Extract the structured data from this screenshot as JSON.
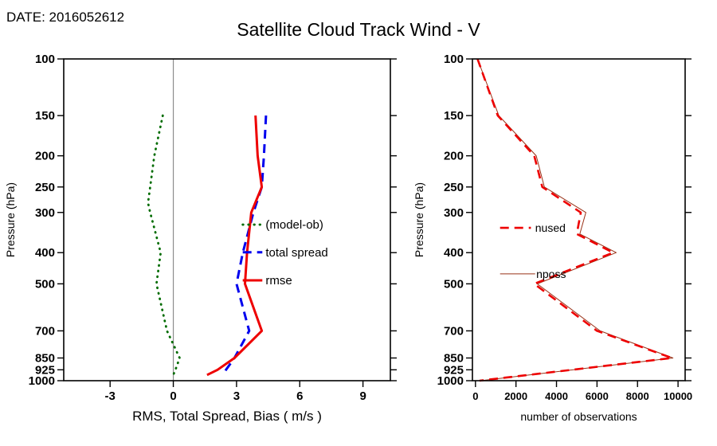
{
  "header": {
    "date": "DATE: 2016052612",
    "title": "Satellite Cloud Track Wind - V"
  },
  "chart_data": [
    {
      "type": "line",
      "panel": "left",
      "xlabel": "RMS, Total Spread, Bias ( m/s )",
      "ylabel": "Pressure (hPa)",
      "xlim": [
        -5.2,
        10.3
      ],
      "xticks": [
        -3,
        0,
        3,
        6,
        9
      ],
      "yscale": "log",
      "ylim": [
        100,
        1000
      ],
      "yticks": [
        100,
        150,
        200,
        250,
        300,
        400,
        500,
        700,
        850,
        925,
        1000
      ],
      "zero_line": true,
      "zero_line_color": "#8c8c8c",
      "frame_color": "#000000",
      "series": [
        {
          "name": "(model-ob)",
          "color": "#006b00",
          "style": "dotted",
          "width": 2.8,
          "pressure": [
            150,
            200,
            250,
            280,
            300,
            400,
            500,
            700,
            850,
            925,
            960
          ],
          "values": [
            -0.5,
            -0.9,
            -1.1,
            -1.2,
            -1.1,
            -0.6,
            -0.8,
            -0.3,
            0.3,
            0.1,
            0.0
          ]
        },
        {
          "name": "total spread",
          "color": "#0000ee",
          "style": "dashed",
          "width": 3,
          "pressure": [
            150,
            200,
            250,
            300,
            400,
            500,
            700,
            850,
            925,
            960
          ],
          "values": [
            4.4,
            4.3,
            4.2,
            3.8,
            3.3,
            3.0,
            3.6,
            2.9,
            2.5,
            2.4
          ]
        },
        {
          "name": "rmse",
          "color": "#ee0000",
          "style": "solid",
          "width": 3,
          "pressure": [
            150,
            200,
            250,
            300,
            400,
            500,
            700,
            850,
            925,
            960
          ],
          "values": [
            3.9,
            4.0,
            4.2,
            3.7,
            3.5,
            3.4,
            4.2,
            2.9,
            2.1,
            1.6
          ]
        }
      ],
      "legend": {
        "items": [
          {
            "label": "(model-ob)",
            "series": 0,
            "sample": [
              0.548,
              0.608
            ],
            "tx": 0.618,
            "y": 0.515
          },
          {
            "label": "total spread",
            "series": 1,
            "sample": [
              0.548,
              0.608
            ],
            "tx": 0.618,
            "y": 0.601
          },
          {
            "label": "rmse",
            "series": 2,
            "sample": [
              0.548,
              0.608
            ],
            "tx": 0.618,
            "y": 0.688
          }
        ]
      }
    },
    {
      "type": "line",
      "panel": "right",
      "xlabel": "number of observations",
      "ylabel": "Pressure (hPa)",
      "xlim": [
        -150,
        10350
      ],
      "xticks": [
        0,
        2000,
        4000,
        6000,
        8000,
        10000
      ],
      "yscale": "log",
      "ylim": [
        100,
        1000
      ],
      "yticks": [
        100,
        150,
        200,
        250,
        300,
        400,
        500,
        700,
        850,
        925,
        1000
      ],
      "zero_line": false,
      "frame_color": "#000000",
      "series": [
        {
          "name": "nposs",
          "color": "#993016",
          "style": "solid",
          "width": 1,
          "pressure": [
            100,
            150,
            200,
            250,
            300,
            350,
            400,
            500,
            700,
            850,
            1000
          ],
          "values": [
            100,
            1150,
            3000,
            3400,
            5450,
            5150,
            6950,
            3050,
            6150,
            9750,
            250
          ]
        },
        {
          "name": "nused",
          "color": "#ee0000",
          "style": "dashed",
          "width": 2.6,
          "pressure": [
            100,
            150,
            200,
            250,
            300,
            350,
            400,
            500,
            700,
            850,
            1000
          ],
          "values": [
            100,
            1100,
            2900,
            3300,
            5200,
            5000,
            6800,
            2900,
            6000,
            9700,
            200
          ]
        }
      ],
      "legend": {
        "items": [
          {
            "label": "nused",
            "series": 1,
            "sample": [
              0.13,
              0.275
            ],
            "tx": 0.295,
            "y": 0.525
          },
          {
            "label": "nposs",
            "series": 0,
            "sample": [
              0.13,
              0.295
            ],
            "tx": 0.3,
            "y": 0.668
          }
        ]
      }
    }
  ]
}
